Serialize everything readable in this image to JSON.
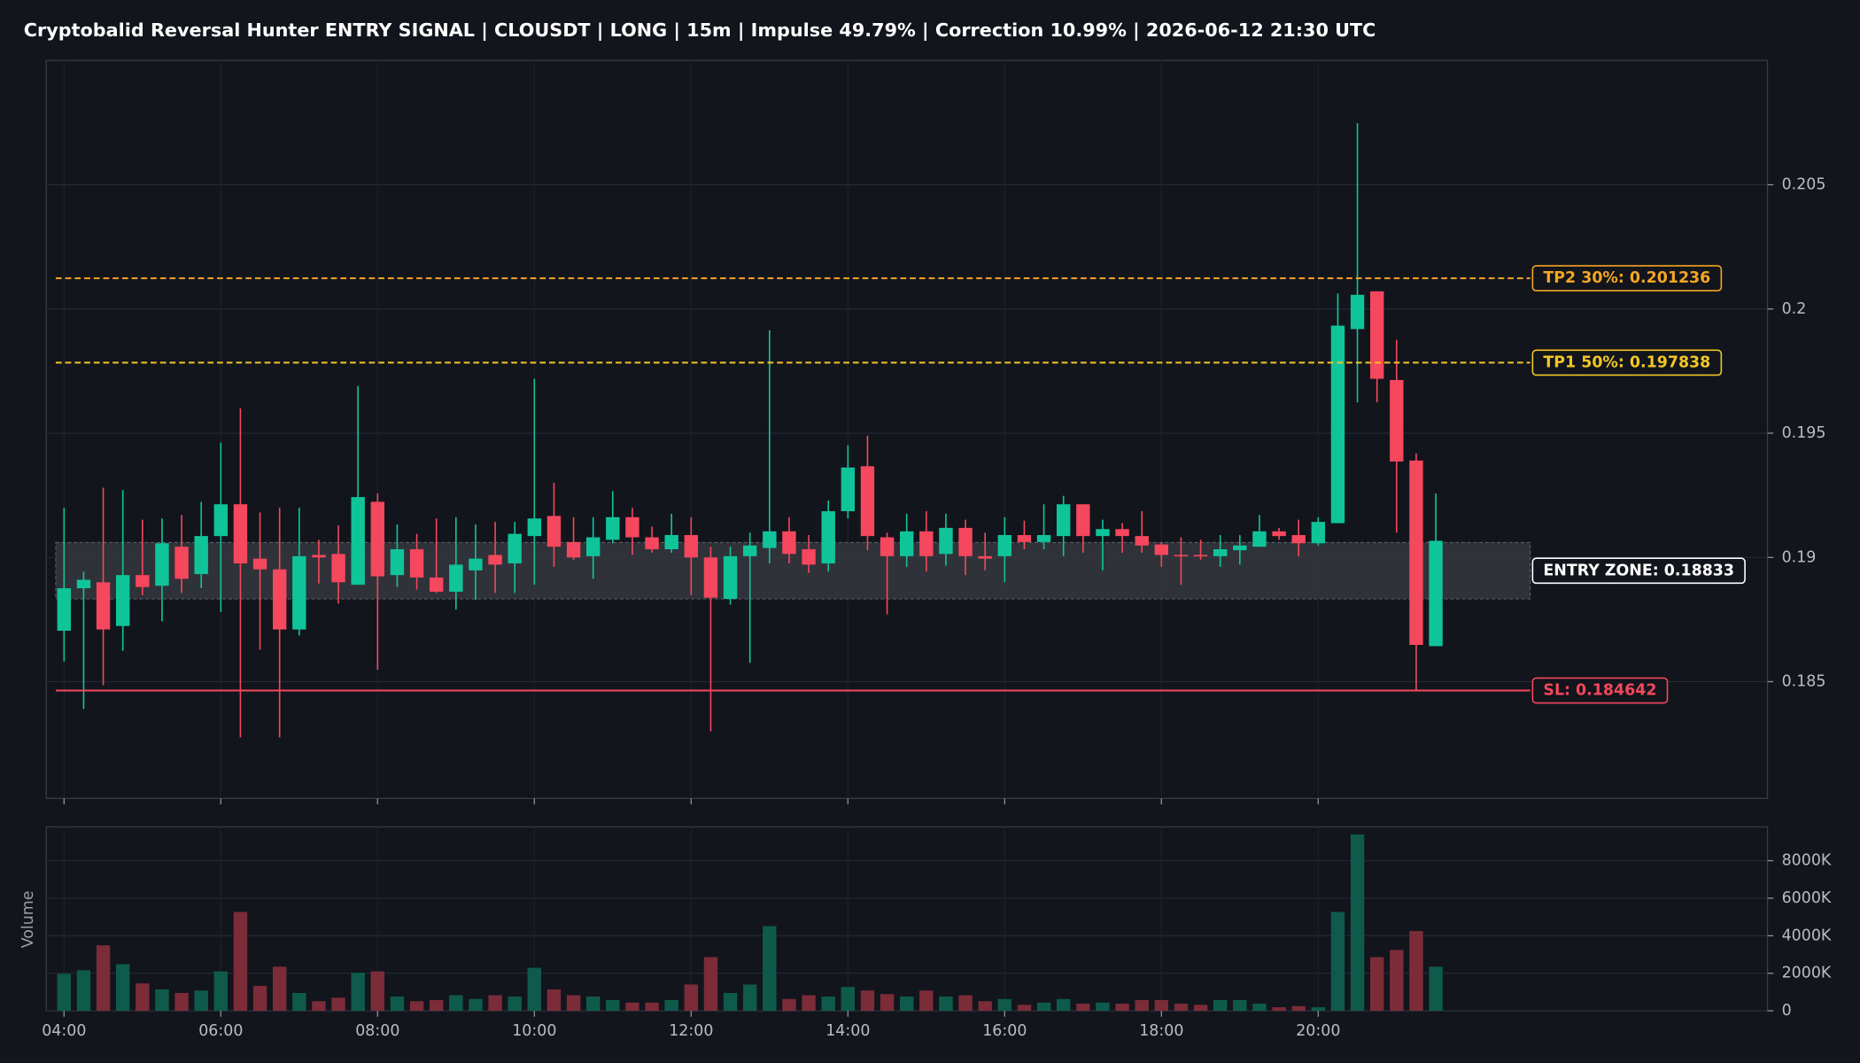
{
  "chart_data": {
    "type": "candlestick",
    "title": "Cryptobalid Reversal Hunter ENTRY SIGNAL | CLOUSDT | LONG | 15m | Impulse 49.79% | Correction 10.99% | 2026-06-12 21:30 UTC",
    "categories": [
      "04:00",
      null,
      null,
      null,
      null,
      null,
      null,
      null,
      "06:00",
      null,
      null,
      null,
      null,
      null,
      null,
      null,
      "08:00",
      null,
      null,
      null,
      null,
      null,
      null,
      null,
      "10:00",
      null,
      null,
      null,
      null,
      null,
      null,
      null,
      "12:00",
      null,
      null,
      null,
      null,
      null,
      null,
      null,
      "14:00",
      null,
      null,
      null,
      null,
      null,
      null,
      null,
      "16:00",
      null,
      null,
      null,
      null,
      null,
      null,
      null,
      "18:00",
      null,
      null,
      null,
      null,
      null,
      null,
      null,
      "20:00",
      null,
      null,
      null,
      null,
      null,
      null
    ],
    "open": [
      0.18705,
      0.18876,
      0.189,
      0.18724,
      0.18929,
      0.18886,
      0.19043,
      0.18933,
      0.19086,
      0.19214,
      0.18995,
      0.18952,
      0.1871,
      0.1901,
      0.19014,
      0.1889,
      0.19224,
      0.18929,
      0.19033,
      0.18919,
      0.18862,
      0.18948,
      0.1901,
      0.18976,
      0.19086,
      0.19167,
      0.19062,
      0.19005,
      0.19071,
      0.19162,
      0.19081,
      0.19033,
      0.1909,
      0.19,
      0.18833,
      0.19005,
      0.19038,
      0.19105,
      0.19033,
      0.18976,
      0.19186,
      0.19367,
      0.19081,
      0.19005,
      0.19105,
      0.19014,
      0.19119,
      0.19005,
      0.19005,
      0.1909,
      0.19062,
      0.19086,
      0.19214,
      0.19086,
      0.19114,
      0.19086,
      0.19052,
      0.1901,
      0.1901,
      0.19005,
      0.19029,
      0.19043,
      0.19105,
      0.1909,
      0.19057,
      0.19138,
      0.19919,
      0.20071,
      0.19714,
      0.1939,
      0.18643
    ],
    "high": [
      0.192,
      0.18943,
      0.19281,
      0.19271,
      0.19152,
      0.19157,
      0.19171,
      0.19224,
      0.19462,
      0.196,
      0.19181,
      0.192,
      0.192,
      0.19071,
      0.19129,
      0.1969,
      0.19257,
      0.19133,
      0.19095,
      0.19157,
      0.19162,
      0.19133,
      0.19143,
      0.19143,
      0.19719,
      0.193,
      0.19162,
      0.19162,
      0.19267,
      0.192,
      0.19124,
      0.19176,
      0.19162,
      0.19043,
      0.19043,
      0.191,
      0.19914,
      0.19162,
      0.1909,
      0.19229,
      0.19452,
      0.1949,
      0.191,
      0.19176,
      0.19186,
      0.19176,
      0.19152,
      0.191,
      0.19162,
      0.19148,
      0.19214,
      0.19248,
      0.19214,
      0.19152,
      0.19138,
      0.19186,
      0.19062,
      0.19081,
      0.19071,
      0.1909,
      0.1909,
      0.19171,
      0.19119,
      0.19152,
      0.19162,
      0.20062,
      0.20748,
      0.20071,
      0.19876,
      0.19419,
      0.19257
    ],
    "low": [
      0.18581,
      0.1839,
      0.18486,
      0.18624,
      0.18848,
      0.18743,
      0.18857,
      0.18876,
      0.18781,
      0.18276,
      0.18629,
      0.18276,
      0.18686,
      0.18895,
      0.18814,
      0.1889,
      0.18548,
      0.18881,
      0.18871,
      0.18857,
      0.1879,
      0.18829,
      0.18857,
      0.18857,
      0.1889,
      0.18962,
      0.1899,
      0.18914,
      0.19057,
      0.1901,
      0.19019,
      0.19019,
      0.18848,
      0.183,
      0.1881,
      0.18576,
      0.18976,
      0.18976,
      0.18938,
      0.18943,
      0.19157,
      0.19029,
      0.18771,
      0.18962,
      0.18943,
      0.18967,
      0.18929,
      0.18948,
      0.189,
      0.19033,
      0.19033,
      0.19005,
      0.19019,
      0.18948,
      0.19019,
      0.19019,
      0.18962,
      0.1889,
      0.1899,
      0.18962,
      0.18971,
      0.19043,
      0.19071,
      0.19005,
      0.19048,
      0.19138,
      0.19624,
      0.19624,
      0.191,
      0.18462,
      0.18643
    ],
    "close": [
      0.18876,
      0.1891,
      0.1871,
      0.18929,
      0.18881,
      0.19057,
      0.18914,
      0.19086,
      0.19214,
      0.18976,
      0.18952,
      0.1871,
      0.19005,
      0.19,
      0.189,
      0.19243,
      0.18924,
      0.19033,
      0.18919,
      0.18862,
      0.18971,
      0.18995,
      0.18971,
      0.19095,
      0.19157,
      0.19043,
      0.19,
      0.19081,
      0.19162,
      0.19081,
      0.19033,
      0.1909,
      0.19,
      0.18838,
      0.19005,
      0.19048,
      0.19105,
      0.19014,
      0.18971,
      0.19186,
      0.19362,
      0.19086,
      0.19005,
      0.19105,
      0.19005,
      0.19119,
      0.19005,
      0.18995,
      0.1909,
      0.19062,
      0.1909,
      0.19214,
      0.19086,
      0.19114,
      0.19086,
      0.19048,
      0.1901,
      0.19005,
      0.19005,
      0.19033,
      0.19048,
      0.19105,
      0.19086,
      0.19057,
      0.19143,
      0.19933,
      0.20057,
      0.19719,
      0.19386,
      0.18648,
      0.19067
    ],
    "up_color": "#10c49a",
    "down_color": "#f5475d",
    "ylim": [
      0.1803,
      0.21
    ],
    "yticks": [
      0.185,
      0.19,
      0.195,
      0.2,
      0.205
    ],
    "grid": true,
    "levels": [
      {
        "label": "TP2 30%: 0.201236",
        "value": 0.201236,
        "color": "#f5a524",
        "dashed": true
      },
      {
        "label": "TP1 50%: 0.197838",
        "value": 0.197838,
        "color": "#f2c625",
        "dashed": true
      },
      {
        "label": "SL: 0.184642",
        "value": 0.184642,
        "color": "#f5475d",
        "dashed": false
      }
    ],
    "entry_zone": {
      "label": "ENTRY ZONE: 0.18833",
      "low": 0.18833,
      "high": 0.1906,
      "color": "#ffffff"
    },
    "volume": {
      "label": "Volume",
      "values": [
        1970,
        2160,
        3490,
        2480,
        1460,
        1140,
        950,
        1080,
        2100,
        5270,
        1330,
        2350,
        950,
        510,
        700,
        2030,
        2100,
        760,
        510,
        570,
        830,
        630,
        830,
        760,
        2290,
        1140,
        830,
        760,
        570,
        440,
        440,
        570,
        1400,
        2860,
        950,
        1400,
        4510,
        630,
        830,
        760,
        1270,
        1080,
        890,
        760,
        1080,
        760,
        830,
        510,
        630,
        320,
        440,
        630,
        380,
        440,
        380,
        570,
        570,
        380,
        320,
        570,
        570,
        380,
        190,
        250,
        190,
        5270,
        9400,
        2860,
        3240,
        4250,
        2350
      ],
      "up_color": "#0f5b4b",
      "down_color": "#7b2c38",
      "ylim": [
        0,
        9800
      ],
      "yticks": [
        0,
        {
          "value": 2000,
          "label": "2000K"
        },
        {
          "value": 4000,
          "label": "4000K"
        },
        {
          "value": 6000,
          "label": "6000K"
        },
        {
          "value": 8000,
          "label": "8000K"
        }
      ]
    }
  }
}
